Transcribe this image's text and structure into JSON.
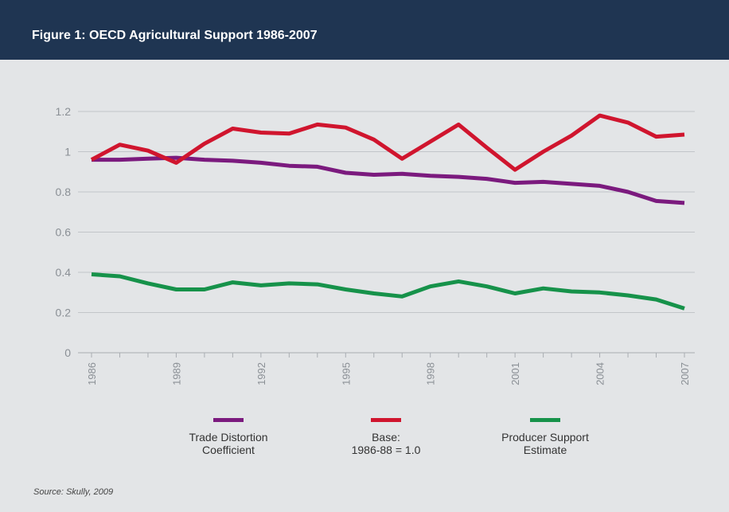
{
  "header": {
    "title": "Figure 1: OECD Agricultural Support 1986-2007"
  },
  "source": "Source: Skully, 2009",
  "colors": {
    "header_bg": "#1f3552",
    "trade": "#7b1a7e",
    "base": "#d0152e",
    "pse": "#16924a"
  },
  "chart_data": {
    "type": "line",
    "x": [
      1986,
      1987,
      1988,
      1989,
      1990,
      1991,
      1992,
      1993,
      1994,
      1995,
      1996,
      1997,
      1998,
      1999,
      2000,
      2001,
      2002,
      2003,
      2004,
      2005,
      2006,
      2007
    ],
    "xticks": [
      "1986",
      "1989",
      "1992",
      "1995",
      "1998",
      "2001",
      "2004",
      "2007"
    ],
    "yticks": [
      "0",
      "0.2",
      "0.4",
      "0.6",
      "0.8",
      "1",
      "1.2"
    ],
    "ylim": [
      0,
      1.2
    ],
    "grid": true,
    "legend_position": "bottom",
    "series": [
      {
        "name": "Trade Distortion\nCoefficient",
        "color": "#7b1a7e",
        "values": [
          0.96,
          0.96,
          0.965,
          0.97,
          0.96,
          0.955,
          0.945,
          0.93,
          0.925,
          0.895,
          0.885,
          0.89,
          0.88,
          0.875,
          0.865,
          0.845,
          0.85,
          0.84,
          0.83,
          0.8,
          0.755,
          0.745
        ]
      },
      {
        "name": "Base:\n1986-88 = 1.0",
        "color": "#d0152e",
        "values": [
          0.96,
          1.035,
          1.005,
          0.945,
          1.04,
          1.115,
          1.095,
          1.09,
          1.135,
          1.12,
          1.06,
          0.965,
          1.05,
          1.135,
          1.02,
          0.91,
          1.0,
          1.08,
          1.18,
          1.145,
          1.075,
          1.085
        ]
      },
      {
        "name": "Producer Support\nEstimate",
        "color": "#16924a",
        "values": [
          0.39,
          0.38,
          0.345,
          0.315,
          0.315,
          0.35,
          0.335,
          0.345,
          0.34,
          0.315,
          0.295,
          0.28,
          0.33,
          0.355,
          0.33,
          0.295,
          0.32,
          0.305,
          0.3,
          0.285,
          0.265,
          0.22
        ]
      }
    ]
  }
}
